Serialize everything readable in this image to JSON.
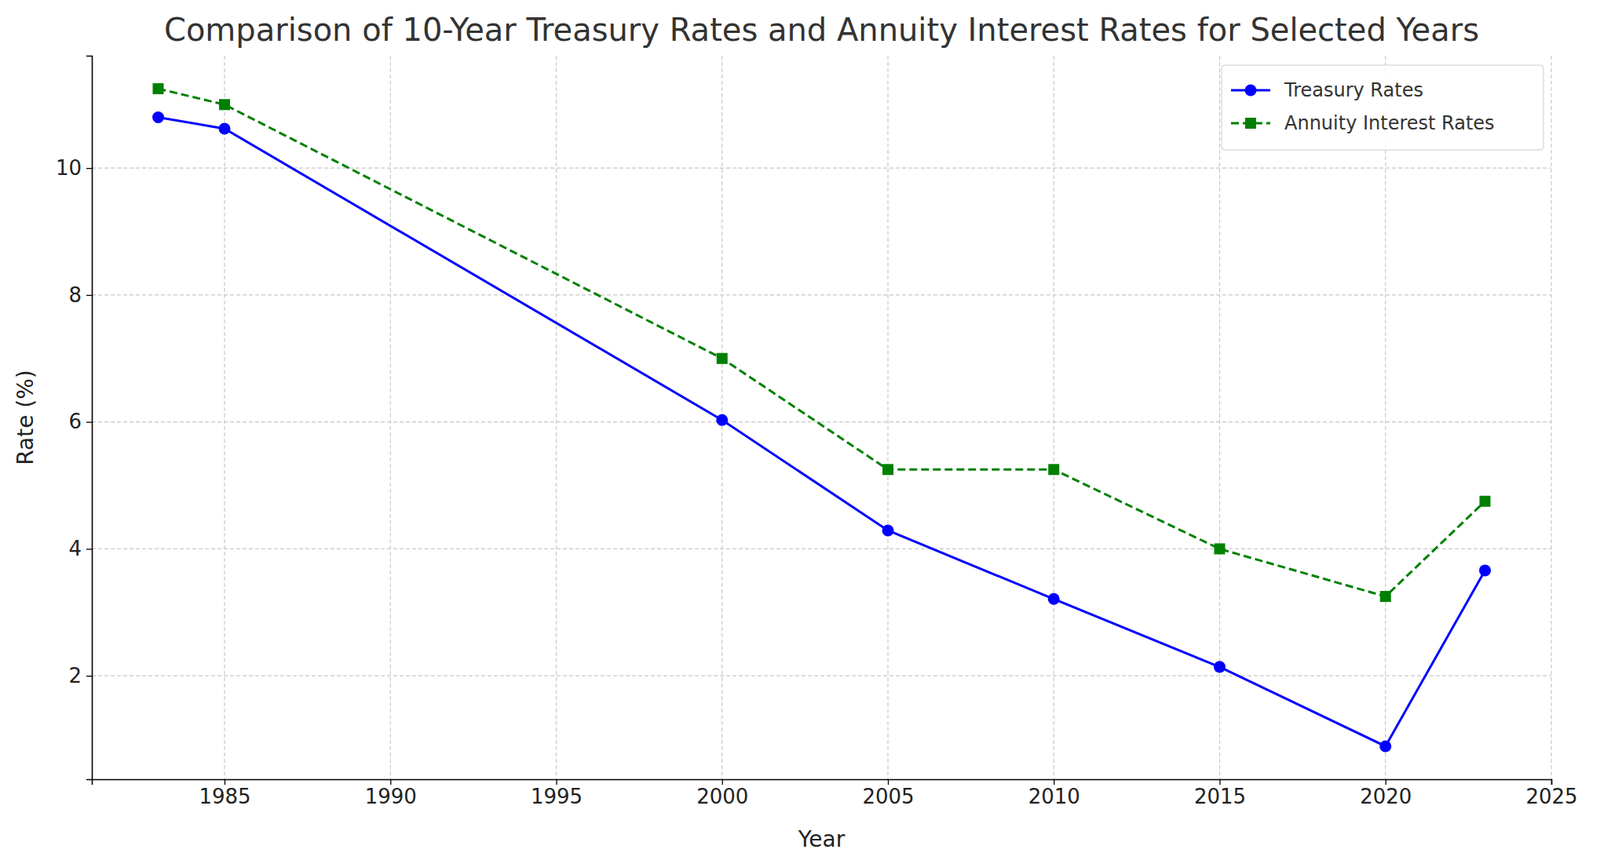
{
  "chart_data": {
    "type": "line",
    "title": "Comparison of 10-Year Treasury Rates and Annuity Interest Rates for Selected Years",
    "x_label": "Year",
    "y_label": "Rate (%)",
    "x": [
      1983,
      1985,
      2000,
      2005,
      2010,
      2015,
      2020,
      2023
    ],
    "series": [
      {
        "name": "Treasury Rates",
        "color": "#0000ff",
        "marker": "circle",
        "line_style": "solid",
        "values": [
          10.8,
          10.62,
          6.03,
          4.29,
          3.21,
          2.14,
          0.89,
          3.66
        ]
      },
      {
        "name": "Annuity Interest Rates",
        "color": "#008000",
        "marker": "square",
        "line_style": "dashed",
        "values": [
          11.25,
          11.0,
          7.0,
          5.25,
          5.25,
          4.0,
          3.25,
          4.75
        ]
      }
    ],
    "xlim": [
      1981,
      2025
    ],
    "xticks": [
      1985,
      1990,
      1995,
      2000,
      2005,
      2010,
      2015,
      2020,
      2025
    ],
    "ylim": [
      0.37,
      11.77
    ],
    "yticks": [
      2,
      4,
      6,
      8,
      10
    ],
    "grid": true,
    "legend": "upper right"
  }
}
